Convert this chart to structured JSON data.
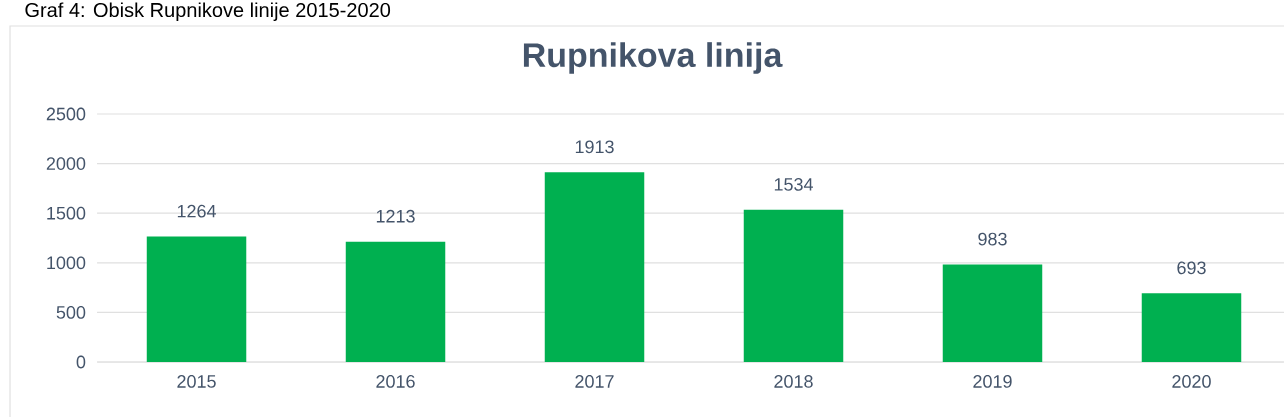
{
  "chart_data": {
    "type": "bar",
    "title": "Rupnikova linija",
    "annotations": [
      "Graf 4: Obisk Rupnikove linije 2015-2020"
    ],
    "categories": [
      "2015",
      "2016",
      "2017",
      "2018",
      "2019",
      "2020"
    ],
    "values": [
      1264,
      1213,
      1913,
      1534,
      983,
      693
    ],
    "color": "#00b050",
    "ylim": [
      0,
      2500
    ],
    "yticks": [
      0,
      500,
      1000,
      1500,
      2000,
      2500
    ],
    "grid": "y",
    "data_labels": true
  }
}
